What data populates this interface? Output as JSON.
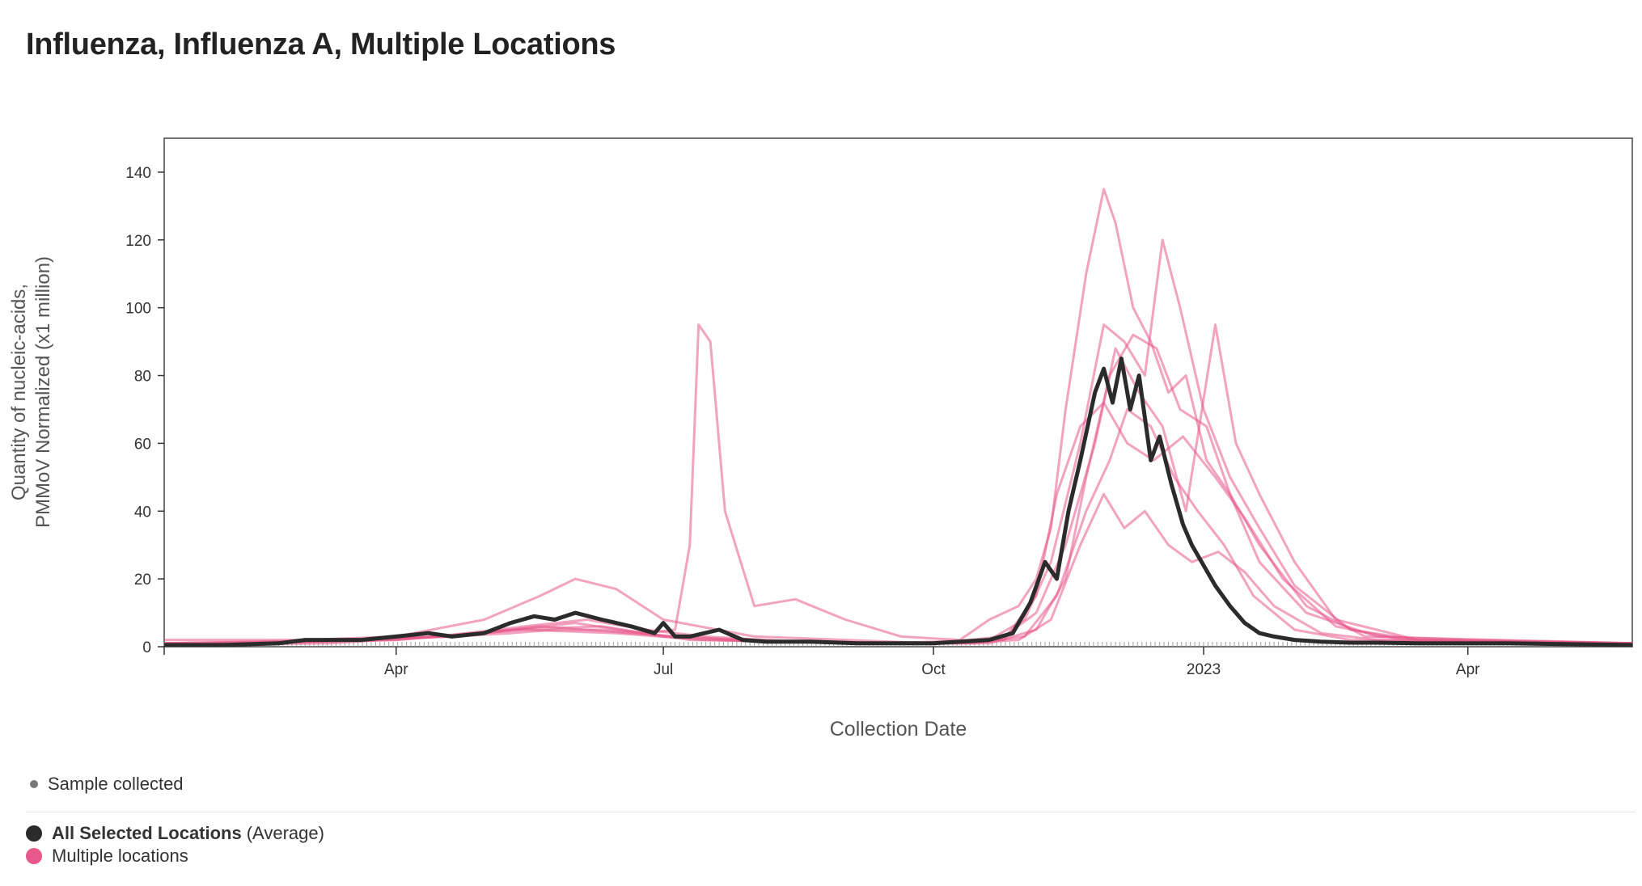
{
  "title": "Influenza, Influenza A, Multiple Locations",
  "colors": {
    "average": "#2b2b2b",
    "locations": "#e8588a",
    "sample_tick": "#888888",
    "axis": "#333333"
  },
  "legend": {
    "sample_label": "Sample collected",
    "average_label_bold": "All Selected Locations",
    "average_label_rest": "(Average)",
    "locations_label": "Multiple locations"
  },
  "chart_data": {
    "type": "line",
    "title": "Influenza, Influenza A, Multiple Locations",
    "xlabel": "Collection Date",
    "ylabel_line1": "Quantity of nucleic-acids,",
    "ylabel_line2": "PMMoV Normalized (x1 million)",
    "xlim": [
      "2022-01-12",
      "2023-05-27"
    ],
    "ylim": [
      0,
      150
    ],
    "yticks": [
      0,
      20,
      40,
      60,
      80,
      100,
      120,
      140
    ],
    "xticks": [
      {
        "date": "2022-04-01",
        "label": "Apr"
      },
      {
        "date": "2022-07-01",
        "label": "Jul"
      },
      {
        "date": "2022-10-01",
        "label": "Oct"
      },
      {
        "date": "2023-01-01",
        "label": "2023"
      },
      {
        "date": "2023-04-01",
        "label": "Apr"
      }
    ],
    "grid": false,
    "legend_position": "bottom-left",
    "average_series": {
      "name": "All Selected Locations (Average)",
      "x": [
        "2022-01-12",
        "2022-02-01",
        "2022-02-20",
        "2022-03-01",
        "2022-03-20",
        "2022-04-01",
        "2022-04-12",
        "2022-04-20",
        "2022-05-01",
        "2022-05-10",
        "2022-05-18",
        "2022-05-25",
        "2022-06-01",
        "2022-06-10",
        "2022-06-20",
        "2022-06-28",
        "2022-07-01",
        "2022-07-05",
        "2022-07-10",
        "2022-07-20",
        "2022-07-28",
        "2022-08-05",
        "2022-08-20",
        "2022-09-05",
        "2022-09-20",
        "2022-10-01",
        "2022-10-10",
        "2022-10-20",
        "2022-10-28",
        "2022-11-03",
        "2022-11-08",
        "2022-11-12",
        "2022-11-16",
        "2022-11-20",
        "2022-11-25",
        "2022-11-28",
        "2022-12-01",
        "2022-12-04",
        "2022-12-07",
        "2022-12-10",
        "2022-12-14",
        "2022-12-17",
        "2022-12-21",
        "2022-12-25",
        "2022-12-28",
        "2023-01-01",
        "2023-01-05",
        "2023-01-10",
        "2023-01-15",
        "2023-01-20",
        "2023-01-25",
        "2023-02-01",
        "2023-02-10",
        "2023-02-20",
        "2023-03-01",
        "2023-03-15",
        "2023-04-01",
        "2023-04-15",
        "2023-05-01",
        "2023-05-27"
      ],
      "y": [
        0.5,
        0.5,
        1,
        2,
        2,
        3,
        4,
        3,
        4,
        7,
        9,
        8,
        10,
        8,
        6,
        4,
        7,
        3,
        3,
        5,
        2,
        1.5,
        1.5,
        1,
        1,
        1,
        1.5,
        2,
        4,
        13,
        25,
        20,
        40,
        55,
        75,
        82,
        72,
        85,
        70,
        80,
        55,
        62,
        48,
        36,
        30,
        24,
        18,
        12,
        7,
        4,
        3,
        2,
        1.5,
        1.2,
        1.2,
        1,
        1,
        1,
        0.8,
        0.5
      ]
    },
    "location_series": [
      {
        "x": [
          "2022-01-12",
          "2022-02-15",
          "2022-03-20",
          "2022-04-20",
          "2022-05-10",
          "2022-05-25",
          "2022-06-10",
          "2022-06-25",
          "2022-07-05",
          "2022-07-10",
          "2022-07-13",
          "2022-07-17",
          "2022-07-22",
          "2022-08-01",
          "2022-08-15",
          "2022-09-01",
          "2022-09-20",
          "2022-10-10",
          "2022-10-20",
          "2022-10-30",
          "2022-11-05",
          "2022-11-10",
          "2022-11-15",
          "2022-11-22",
          "2022-11-28",
          "2022-12-02",
          "2022-12-08",
          "2022-12-14",
          "2022-12-20",
          "2022-12-26",
          "2023-01-02",
          "2023-01-10",
          "2023-01-20",
          "2023-02-05",
          "2023-03-01",
          "2023-04-01",
          "2023-05-27"
        ],
        "y": [
          1,
          1,
          2,
          3,
          4,
          5,
          5,
          4,
          5,
          30,
          95,
          90,
          40,
          12,
          14,
          8,
          3,
          2,
          8,
          12,
          20,
          35,
          70,
          110,
          135,
          125,
          100,
          90,
          75,
          80,
          55,
          45,
          25,
          10,
          3,
          2,
          1
        ]
      },
      {
        "x": [
          "2022-01-12",
          "2022-03-01",
          "2022-04-01",
          "2022-05-01",
          "2022-05-20",
          "2022-06-01",
          "2022-06-15",
          "2022-07-01",
          "2022-08-01",
          "2022-09-01",
          "2022-10-01",
          "2022-10-20",
          "2022-11-01",
          "2022-11-10",
          "2022-11-20",
          "2022-11-28",
          "2022-12-05",
          "2022-12-12",
          "2022-12-18",
          "2022-12-24",
          "2023-01-01",
          "2023-01-10",
          "2023-01-20",
          "2023-02-01",
          "2023-02-20",
          "2023-03-15",
          "2023-05-27"
        ],
        "y": [
          2,
          2,
          3,
          8,
          15,
          20,
          17,
          8,
          3,
          2,
          1,
          2,
          8,
          25,
          60,
          95,
          90,
          80,
          120,
          100,
          70,
          50,
          35,
          18,
          5,
          2,
          1
        ]
      },
      {
        "x": [
          "2022-01-12",
          "2022-03-15",
          "2022-04-15",
          "2022-05-15",
          "2022-06-05",
          "2022-06-25",
          "2022-07-15",
          "2022-08-15",
          "2022-10-01",
          "2022-10-25",
          "2022-11-05",
          "2022-11-15",
          "2022-11-25",
          "2022-12-02",
          "2022-12-10",
          "2022-12-18",
          "2022-12-26",
          "2023-01-05",
          "2023-01-12",
          "2023-01-20",
          "2023-02-01",
          "2023-02-15",
          "2023-03-15",
          "2023-05-27"
        ],
        "y": [
          1,
          2,
          3,
          6,
          8,
          5,
          3,
          1.5,
          1,
          3,
          10,
          30,
          60,
          88,
          75,
          65,
          40,
          95,
          60,
          45,
          25,
          8,
          2,
          1
        ]
      },
      {
        "x": [
          "2022-01-12",
          "2022-02-10",
          "2022-04-01",
          "2022-05-15",
          "2022-06-15",
          "2022-07-15",
          "2022-09-01",
          "2022-10-15",
          "2022-11-01",
          "2022-11-12",
          "2022-11-22",
          "2022-11-30",
          "2022-12-06",
          "2022-12-14",
          "2022-12-22",
          "2022-12-30",
          "2023-01-08",
          "2023-01-18",
          "2023-02-01",
          "2023-02-20",
          "2023-05-27"
        ],
        "y": [
          0.5,
          1,
          2,
          5,
          4,
          2,
          1,
          1,
          3,
          15,
          40,
          55,
          70,
          65,
          50,
          40,
          30,
          15,
          5,
          2,
          1
        ]
      },
      {
        "x": [
          "2022-01-12",
          "2022-03-01",
          "2022-04-20",
          "2022-05-20",
          "2022-06-20",
          "2022-08-01",
          "2022-10-10",
          "2022-10-30",
          "2022-11-10",
          "2022-11-20",
          "2022-11-28",
          "2022-12-05",
          "2022-12-12",
          "2022-12-20",
          "2022-12-28",
          "2023-01-06",
          "2023-01-15",
          "2023-01-25",
          "2023-02-10",
          "2023-03-01",
          "2023-05-27"
        ],
        "y": [
          1,
          1.5,
          3,
          6,
          4,
          1.5,
          1,
          2,
          8,
          30,
          45,
          35,
          40,
          30,
          25,
          28,
          22,
          12,
          4,
          2,
          1
        ]
      },
      {
        "x": [
          "2022-01-12",
          "2022-03-10",
          "2022-05-01",
          "2022-06-01",
          "2022-07-01",
          "2022-09-01",
          "2022-10-20",
          "2022-11-05",
          "2022-11-15",
          "2022-11-22",
          "2022-11-30",
          "2022-12-08",
          "2022-12-16",
          "2022-12-24",
          "2023-01-02",
          "2023-01-10",
          "2023-01-20",
          "2023-02-05",
          "2023-02-25",
          "2023-05-27"
        ],
        "y": [
          0.5,
          1,
          4,
          7,
          3,
          1,
          1,
          5,
          20,
          50,
          80,
          92,
          88,
          70,
          65,
          45,
          30,
          12,
          3,
          1
        ]
      },
      {
        "x": [
          "2022-01-12",
          "2022-04-01",
          "2022-05-10",
          "2022-06-10",
          "2022-07-10",
          "2022-09-10",
          "2022-10-25",
          "2022-11-05",
          "2022-11-12",
          "2022-11-20",
          "2022-11-28",
          "2022-12-06",
          "2022-12-15",
          "2022-12-25",
          "2023-01-05",
          "2023-01-15",
          "2023-01-28",
          "2023-02-15",
          "2023-03-10",
          "2023-05-27"
        ],
        "y": [
          1,
          2,
          5,
          6,
          2,
          1,
          2,
          15,
          45,
          65,
          72,
          60,
          55,
          62,
          50,
          38,
          20,
          6,
          2,
          1
        ]
      }
    ]
  }
}
